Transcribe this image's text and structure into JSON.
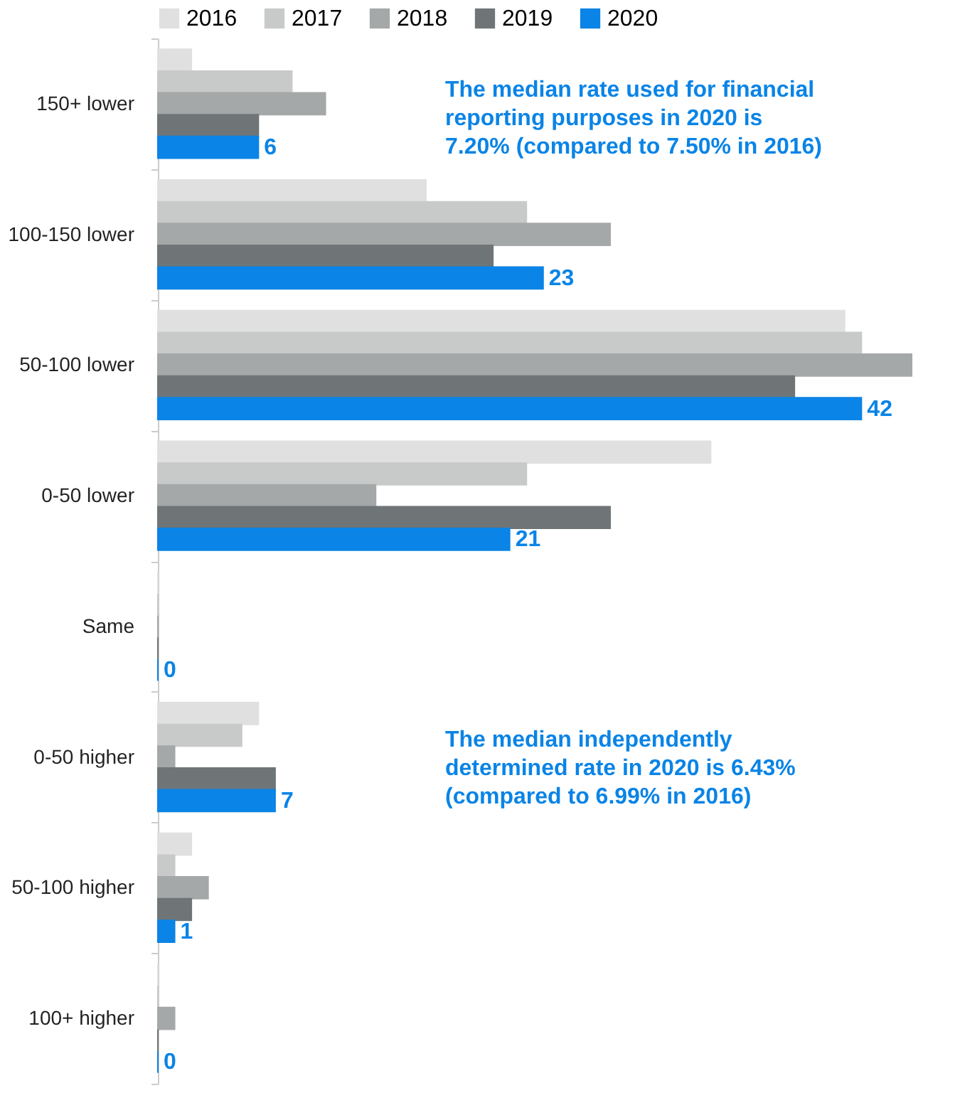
{
  "chart_data": {
    "type": "bar",
    "orientation": "horizontal",
    "legend": "top",
    "categories": [
      "150+ lower",
      "100-150 lower",
      "50-100 lower",
      "0-50 lower",
      "Same",
      "0-50 higher",
      "50-100 higher",
      "100+ higher"
    ],
    "series": [
      {
        "name": "2016",
        "color": "#e0e0e0",
        "values": [
          2,
          16,
          41,
          33,
          0,
          6,
          2,
          0
        ]
      },
      {
        "name": "2017",
        "color": "#c8c9c9",
        "values": [
          8,
          22,
          42,
          22,
          0,
          5,
          1,
          0
        ]
      },
      {
        "name": "2018",
        "color": "#a5a8a8",
        "values": [
          10,
          27,
          45,
          13,
          0,
          1,
          3,
          1
        ]
      },
      {
        "name": "2019",
        "color": "#6f7577",
        "values": [
          6,
          20,
          38,
          27,
          0,
          7,
          2,
          0
        ]
      },
      {
        "name": "2020",
        "color": "#0a84e6",
        "values": [
          6,
          23,
          42,
          21,
          0,
          7,
          1,
          0
        ],
        "value_labels": [
          "6",
          "23",
          "42",
          "21",
          "0",
          "7",
          "1",
          "0"
        ]
      }
    ],
    "annotations": [
      "The median rate used for financial reporting purposes in 2020 is 7.20% (compared to 7.50% in 2016)",
      "The median independently determined rate in 2020 is 6.43% (compared to 6.99% in 2016)"
    ]
  }
}
